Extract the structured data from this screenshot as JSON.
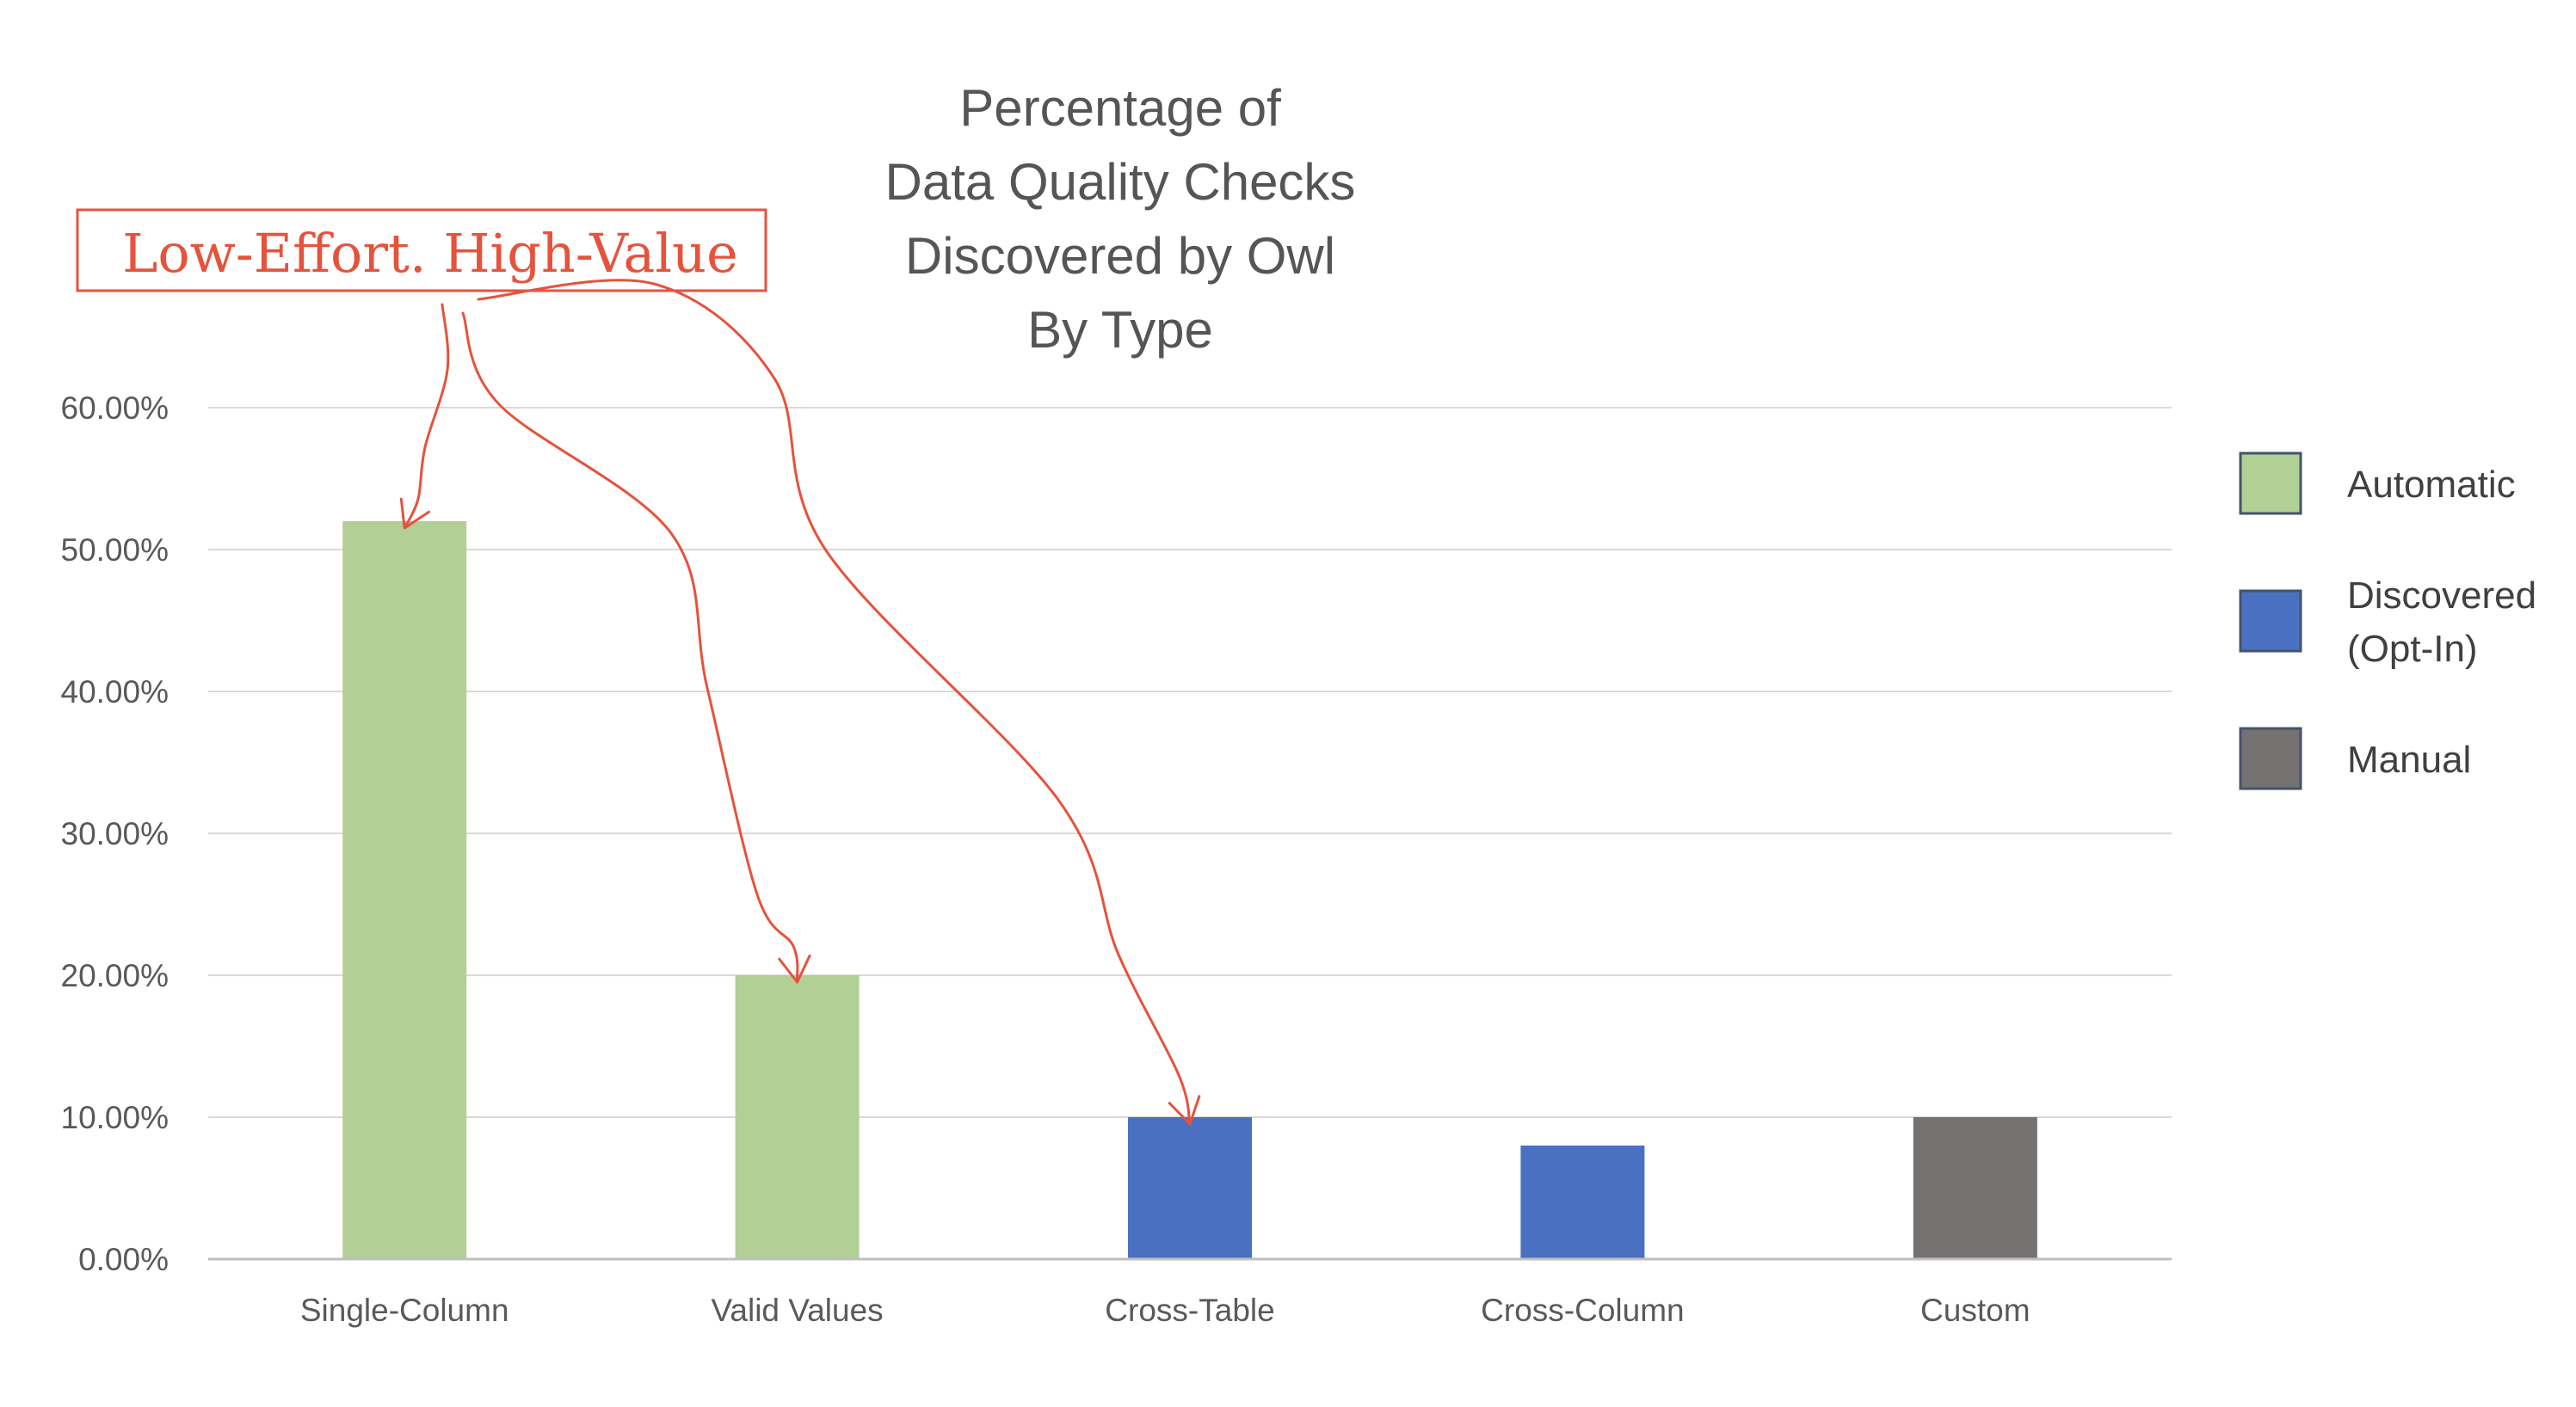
{
  "chart_data": {
    "type": "bar",
    "title_lines": [
      "Percentage of",
      "Data Quality Checks",
      "Discovered by Owl",
      "By Type"
    ],
    "categories": [
      "Single-Column",
      "Valid Values",
      "Cross-Table",
      "Cross-Column",
      "Custom"
    ],
    "values": [
      0.52,
      0.2,
      0.1,
      0.08,
      0.1
    ],
    "bar_series": [
      "Automatic",
      "Automatic",
      "Discovered (Opt-In)",
      "Discovered (Opt-In)",
      "Manual"
    ],
    "ylim": [
      0,
      0.6
    ],
    "yticks": [
      0,
      0.1,
      0.2,
      0.3,
      0.4,
      0.5,
      0.6
    ],
    "ytick_labels": [
      "0.00%",
      "10.00%",
      "20.00%",
      "30.00%",
      "40.00%",
      "50.00%",
      "60.00%"
    ],
    "xlabel": "",
    "ylabel": "",
    "grid": true,
    "legend_position": "right",
    "legend": [
      {
        "name": "Automatic",
        "lines": [
          "Automatic"
        ],
        "color": "#b2cf95"
      },
      {
        "name": "Discovered (Opt-In)",
        "lines": [
          "Discovered",
          "(Opt-In)"
        ],
        "color": "#4a71c1"
      },
      {
        "name": "Manual",
        "lines": [
          "Manual"
        ],
        "color": "#767171"
      }
    ],
    "annotation": {
      "text": "Low-Effort. High-Value",
      "color": "#e5533d",
      "points_to": [
        "Single-Column",
        "Valid Values",
        "Cross-Table"
      ]
    }
  }
}
